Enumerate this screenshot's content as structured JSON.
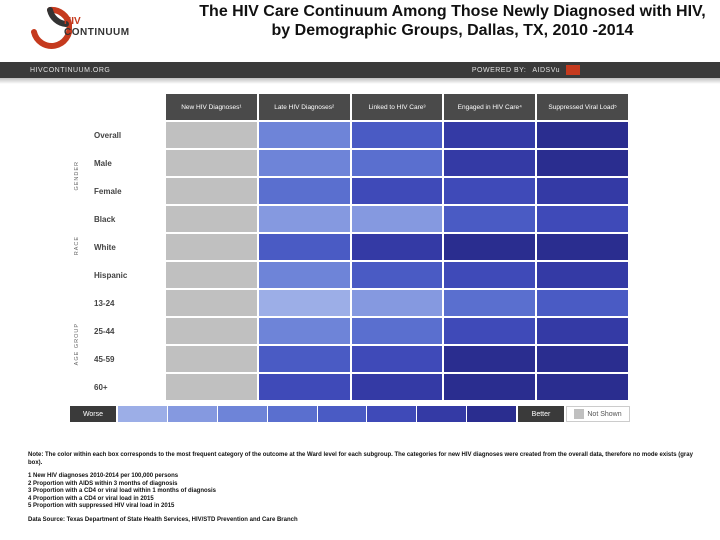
{
  "title": "The HIV Care Continuum Among Those Newly Diagnosed with HIV, by Demographic Groups, Dallas, TX, 2010 -2014",
  "header_bar": {
    "site": "HIVCONTINUUM.ORG",
    "powered_by": "POWERED BY:",
    "partner": "AIDSVu"
  },
  "logo": {
    "hiv": "HIV",
    "continuum": "CONTINUUM",
    "swirl_color": "#c53a1e"
  },
  "heatmap": {
    "type": "heatmap",
    "background_color": "#ffffff",
    "cell_border_color": "#ffffff",
    "column_headers": [
      "New HIV Diagnoses¹",
      "Late HIV Diagnoses²",
      "Linked to HIV Care³",
      "Engaged in HIV Care⁴",
      "Suppressed Viral Load⁵"
    ],
    "row_groups": [
      {
        "label": "",
        "rows": [
          "Overall"
        ]
      },
      {
        "label": "GENDER",
        "rows": [
          "Male",
          "Female"
        ]
      },
      {
        "label": "RACE",
        "rows": [
          "Black",
          "White",
          "Hispanic"
        ]
      },
      {
        "label": "AGE GROUP",
        "rows": [
          "13-24",
          "25-44",
          "45-59",
          "60+"
        ]
      }
    ],
    "palette_scale": [
      "#2a2d8f",
      "#343aa5",
      "#3f4ab8",
      "#4a5bc4",
      "#5a6fcf",
      "#6e84d8",
      "#8599e0",
      "#9caee7",
      "#b4c3ee",
      "#ccd7f4"
    ],
    "not_shown_color": "#c0c0c0",
    "cell_colors": [
      [
        "#c0c0c0",
        "#6e84d8",
        "#4a5bc4",
        "#343aa5",
        "#2a2d8f"
      ],
      [
        "#c0c0c0",
        "#6e84d8",
        "#5a6fcf",
        "#343aa5",
        "#2a2d8f"
      ],
      [
        "#c0c0c0",
        "#5a6fcf",
        "#3f4ab8",
        "#3f4ab8",
        "#343aa5"
      ],
      [
        "#c0c0c0",
        "#8599e0",
        "#8599e0",
        "#4a5bc4",
        "#3f4ab8"
      ],
      [
        "#c0c0c0",
        "#4a5bc4",
        "#343aa5",
        "#2a2d8f",
        "#2a2d8f"
      ],
      [
        "#c0c0c0",
        "#6e84d8",
        "#4a5bc4",
        "#3f4ab8",
        "#343aa5"
      ],
      [
        "#c0c0c0",
        "#9caee7",
        "#8599e0",
        "#5a6fcf",
        "#4a5bc4"
      ],
      [
        "#c0c0c0",
        "#6e84d8",
        "#5a6fcf",
        "#3f4ab8",
        "#343aa5"
      ],
      [
        "#c0c0c0",
        "#4a5bc4",
        "#3f4ab8",
        "#2a2d8f",
        "#2a2d8f"
      ],
      [
        "#c0c0c0",
        "#3f4ab8",
        "#343aa5",
        "#2a2d8f",
        "#2a2d8f"
      ]
    ],
    "col_head_bg": "#4a4a4a",
    "col_head_fg": "#ffffff",
    "row_head_fontsize": 8
  },
  "legend": {
    "worse_label": "Worse",
    "better_label": "Better",
    "not_shown_label": "Not Shown",
    "stops": [
      "#9caee7",
      "#8599e0",
      "#6e84d8",
      "#5a6fcf",
      "#4a5bc4",
      "#3f4ab8",
      "#343aa5",
      "#2a2d8f"
    ],
    "label_bg": "#3a3a3a"
  },
  "footnotes": {
    "note": "Note: The color within each box corresponds to the most frequent category of the outcome at the Ward level for each subgroup. The categories for new HIV diagnoses were created from the overall data, therefore no mode exists (gray box).",
    "defs": "1 New HIV diagnoses 2010-2014 per 100,000 persons\n2 Proportion with AIDS within 3 months of diagnosis\n3 Proportion with a CD4 or viral load within 1 months of diagnosis\n4 Proportion with a CD4 or viral load in 2015\n5 Proportion with suppressed HIV viral load in 2015",
    "source": "Data Source: Texas Department of State Health Services, HIV/STD Prevention and Care Branch"
  }
}
